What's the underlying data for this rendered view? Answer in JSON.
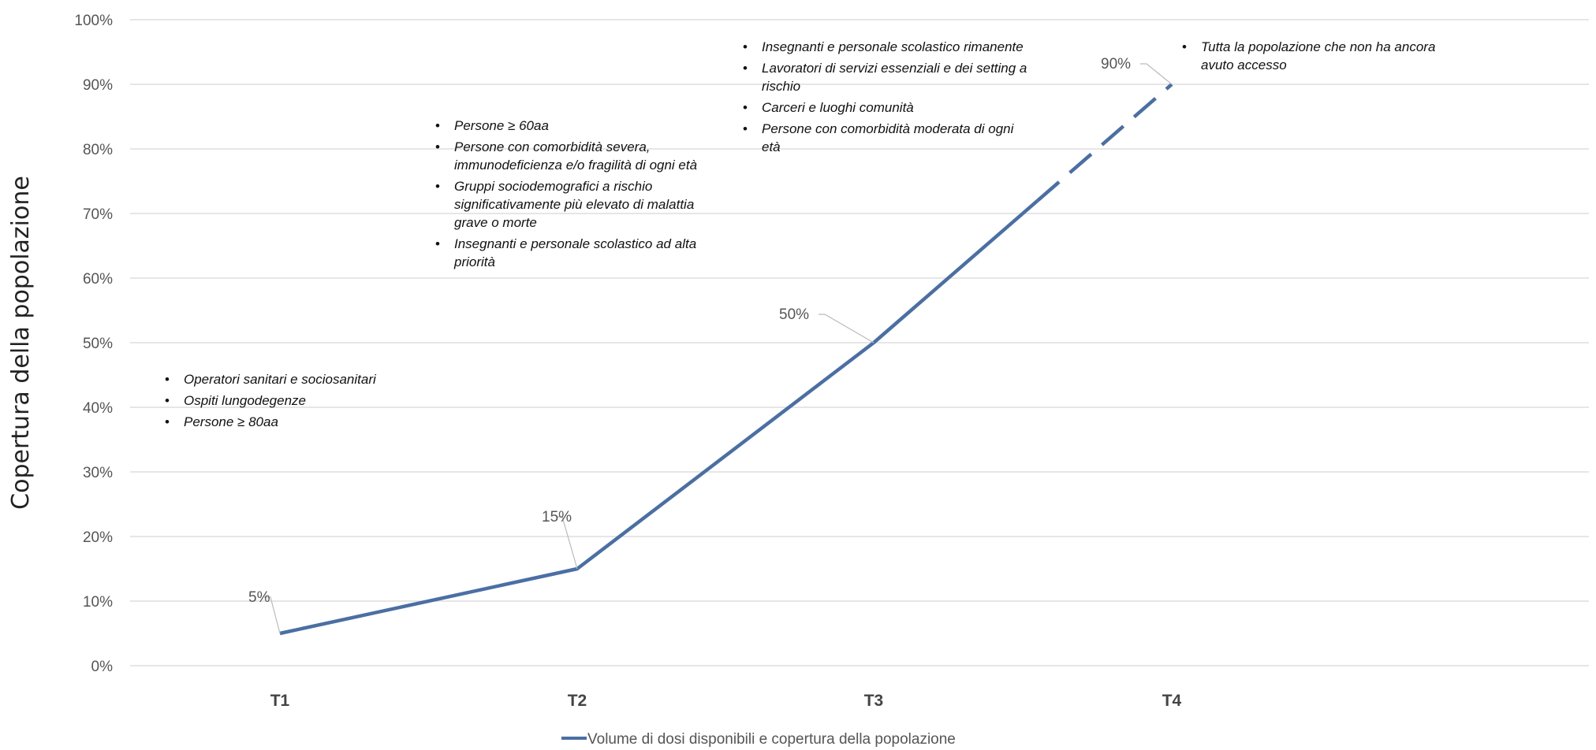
{
  "chart_data": {
    "type": "line",
    "xlabel": "",
    "ylabel": "Copertura della popolazione",
    "ylim": [
      0,
      100
    ],
    "yticks": [
      "0%",
      "10%",
      "20%",
      "30%",
      "40%",
      "50%",
      "60%",
      "70%",
      "80%",
      "90%",
      "100%"
    ],
    "categories": [
      "T1",
      "T2",
      "T3",
      "T4"
    ],
    "series": [
      {
        "name": "Volume di dosi disponibili e copertura della popolazione",
        "values": [
          5,
          15,
          50,
          90
        ],
        "color": "#4a6fa5",
        "dashed_final_segment": true
      }
    ],
    "data_labels": [
      "5%",
      "15%",
      "50%",
      "90%"
    ],
    "grid": "horizontal",
    "legend": "bottom-center",
    "annotations": [
      {
        "phase": "T1",
        "items": [
          "Operatori sanitari e sociosanitari",
          "Ospiti lungodegenze",
          "Persone ≥ 80aa"
        ]
      },
      {
        "phase": "T2",
        "items": [
          "Persone ≥ 60aa",
          "Persone con comorbidità severa, immunodeficienza e/o fragilità di ogni età",
          "Gruppi sociodemografici a rischio significativamente più elevato di malattia grave o morte",
          "Insegnanti e personale scolastico ad alta priorità"
        ]
      },
      {
        "phase": "T3",
        "items": [
          "Insegnanti e personale scolastico rimanente",
          "Lavoratori di servizi essenziali e dei setting a rischio",
          "Carceri e luoghi comunità",
          "Persone con comorbidità moderata di ogni età"
        ]
      },
      {
        "phase": "T4",
        "items": [
          "Tutta la popolazione che non ha ancora avuto accesso"
        ]
      }
    ]
  }
}
